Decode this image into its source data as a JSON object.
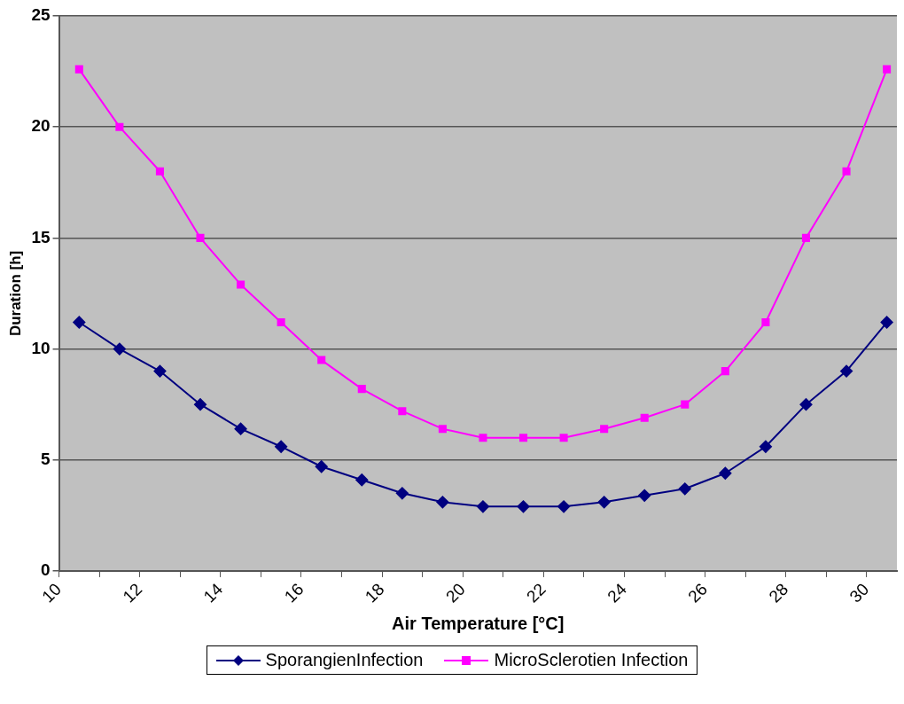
{
  "chart_data": {
    "type": "line",
    "xlabel": "Air Temperature [°C]",
    "ylabel": "Duration [h]",
    "x": [
      10.5,
      11.5,
      12.5,
      13.5,
      14.5,
      15.5,
      16.5,
      17.5,
      18.5,
      19.5,
      20.5,
      21.5,
      22.5,
      23.5,
      24.5,
      25.5,
      26.5,
      27.5,
      28.5,
      29.5,
      30.5
    ],
    "xlim": [
      10,
      30.75
    ],
    "xticks": [
      10,
      {
        "value": 11,
        "label": null
      },
      12,
      {
        "value": 13,
        "label": null
      },
      14,
      {
        "value": 15,
        "label": null
      },
      16,
      {
        "value": 17,
        "label": null
      },
      18,
      {
        "value": 19,
        "label": null
      },
      20,
      {
        "value": 21,
        "label": null
      },
      22,
      {
        "value": 23,
        "label": null
      },
      24,
      {
        "value": 25,
        "label": null
      },
      26,
      {
        "value": 27,
        "label": null
      },
      28,
      {
        "value": 29,
        "label": null
      },
      30
    ],
    "ylim": [
      0,
      25
    ],
    "yticks": [
      0,
      5,
      10,
      15,
      20,
      25
    ],
    "grid": "y",
    "legend": "bottom",
    "series": [
      {
        "name": "SporangienInfection",
        "color": "#000080",
        "marker": "diamond",
        "values": [
          11.2,
          10,
          9,
          7.5,
          6.4,
          5.6,
          4.7,
          4.1,
          3.5,
          3.1,
          2.9,
          2.9,
          2.9,
          3.1,
          3.4,
          3.7,
          4.4,
          5.6,
          7.5,
          9,
          11.2
        ]
      },
      {
        "name": "MicroSclerotien Infection",
        "color": "#ff00ff",
        "marker": "square",
        "values": [
          22.6,
          20,
          18,
          15,
          12.9,
          11.2,
          9.5,
          8.2,
          7.2,
          6.4,
          6,
          6,
          6,
          6.4,
          6.9,
          7.5,
          9,
          11.2,
          15,
          18,
          22.6
        ]
      }
    ]
  }
}
